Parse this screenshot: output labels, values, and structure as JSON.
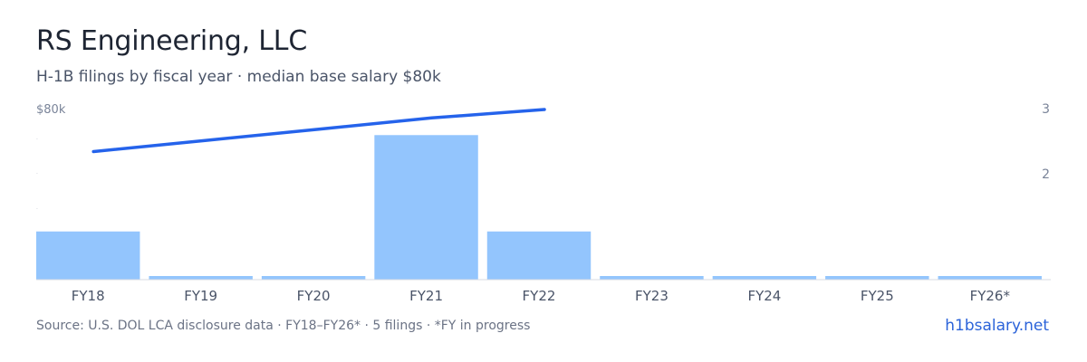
{
  "header": {
    "title": "RS Engineering, LLC",
    "subtitle": "H-1B filings by fiscal year · median base salary $80k"
  },
  "footer": {
    "source": "Source: U.S. DOL LCA disclosure data · FY18–FY26* · 5 filings · *FY in progress",
    "site": "h1bsalary.net"
  },
  "colors": {
    "bar": "#93c5fd",
    "line": "#2563eb",
    "axis_text": "#7a8499",
    "baseline": "#d7dbe3"
  },
  "chart_data": {
    "type": "bar",
    "categories": [
      "FY18",
      "FY19",
      "FY20",
      "FY21",
      "FY22",
      "FY23",
      "FY24",
      "FY25",
      "FY26*"
    ],
    "series": [
      {
        "type": "bar",
        "axis": "right",
        "values": [
          1,
          0,
          0,
          3,
          1,
          0,
          0,
          0,
          0
        ]
      },
      {
        "type": "line",
        "axis": "left",
        "values": [
          65,
          69,
          73,
          77,
          80,
          null,
          null,
          null,
          null
        ]
      }
    ],
    "left_axis": {
      "tick_label": "$80k"
    },
    "right_axis": {
      "ticks": [
        "3",
        "2"
      ]
    },
    "right_ylim": [
      0,
      3.55
    ]
  }
}
